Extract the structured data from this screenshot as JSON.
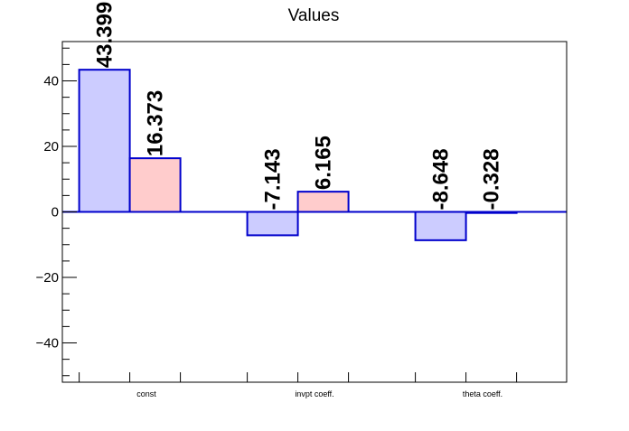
{
  "chart_data": {
    "type": "bar",
    "title": "Values",
    "xlabel": "",
    "ylabel": "",
    "categories": [
      "const",
      "invpt coeff.",
      "theta coeff."
    ],
    "series": [
      {
        "values": [
          43.399,
          -7.143,
          -8.648
        ],
        "labels": [
          "43.399",
          "-7.143",
          "-8.648"
        ],
        "fill": "#ccccff",
        "stroke": "#0000cc"
      },
      {
        "values": [
          16.373,
          6.165,
          -0.328
        ],
        "labels": [
          "16.373",
          "6.165",
          "-0.328"
        ],
        "fill": "#ffcccc",
        "stroke": "#0000cc"
      }
    ],
    "ylim": [
      -52,
      52
    ],
    "yticks": [
      -40,
      -20,
      0,
      20,
      40
    ],
    "yticks_labels": [
      "−40",
      "−20",
      "0",
      "20",
      "40"
    ],
    "zero_line_color": "#0000cc",
    "grid": false,
    "legend": "none"
  }
}
